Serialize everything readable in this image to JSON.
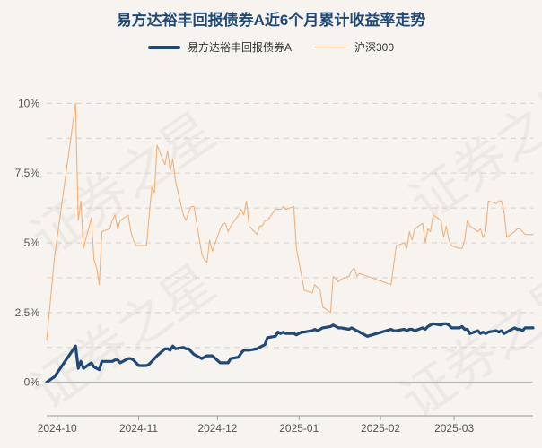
{
  "watermark": "证券之星",
  "chart_data": {
    "type": "line",
    "title": "易方达裕丰回报债券A近6个月累计收益率走势",
    "xlabel": "",
    "ylabel": "",
    "legend_position": "top-center",
    "grid": true,
    "x_ticks": [
      "2024-10",
      "2024-11",
      "2024-12",
      "2025-01",
      "2025-02",
      "2025-03"
    ],
    "x_range": [
      "2024-09-27",
      "2025-03-31"
    ],
    "y_ticks": [
      "0%",
      "2.5%",
      "5%",
      "7.5%",
      "10%"
    ],
    "ylim": [
      -1.2,
      11.2
    ],
    "series": [
      {
        "name": "易方达裕丰回报债券A",
        "color": "#1f4a78",
        "points": [
          [
            "2024-09-27",
            0
          ],
          [
            "2024-09-30",
            0.2
          ],
          [
            "2024-10-08",
            1.3
          ],
          [
            "2024-10-09",
            0.5
          ],
          [
            "2024-10-10",
            0.75
          ],
          [
            "2024-10-11",
            0.5
          ],
          [
            "2024-10-14",
            0.7
          ],
          [
            "2024-10-15",
            0.55
          ],
          [
            "2024-10-16",
            0.5
          ],
          [
            "2024-10-17",
            0.45
          ],
          [
            "2024-10-18",
            0.75
          ],
          [
            "2024-10-21",
            0.75
          ],
          [
            "2024-10-22",
            0.75
          ],
          [
            "2024-10-23",
            0.8
          ],
          [
            "2024-10-24",
            0.8
          ],
          [
            "2024-10-25",
            0.7
          ],
          [
            "2024-10-28",
            0.85
          ],
          [
            "2024-10-29",
            0.85
          ],
          [
            "2024-10-30",
            0.8
          ],
          [
            "2024-10-31",
            0.7
          ],
          [
            "2024-11-01",
            0.6
          ],
          [
            "2024-11-04",
            0.6
          ],
          [
            "2024-11-05",
            0.65
          ],
          [
            "2024-11-06",
            0.75
          ],
          [
            "2024-11-07",
            0.85
          ],
          [
            "2024-11-08",
            0.95
          ],
          [
            "2024-11-11",
            1.2
          ],
          [
            "2024-11-12",
            1.2
          ],
          [
            "2024-11-13",
            1.15
          ],
          [
            "2024-11-14",
            1.3
          ],
          [
            "2024-11-15",
            1.2
          ],
          [
            "2024-11-18",
            1.25
          ],
          [
            "2024-11-19",
            1.2
          ],
          [
            "2024-11-20",
            1.2
          ],
          [
            "2024-11-21",
            1.1
          ],
          [
            "2024-11-22",
            1.0
          ],
          [
            "2024-11-25",
            0.85
          ],
          [
            "2024-11-26",
            0.9
          ],
          [
            "2024-11-27",
            0.95
          ],
          [
            "2024-11-28",
            0.95
          ],
          [
            "2024-11-29",
            0.95
          ],
          [
            "2024-12-02",
            0.7
          ],
          [
            "2024-12-03",
            0.7
          ],
          [
            "2024-12-04",
            0.7
          ],
          [
            "2024-12-05",
            0.7
          ],
          [
            "2024-12-06",
            0.85
          ],
          [
            "2024-12-09",
            0.9
          ],
          [
            "2024-12-10",
            1.05
          ],
          [
            "2024-12-11",
            1.15
          ],
          [
            "2024-12-12",
            1.15
          ],
          [
            "2024-12-13",
            1.15
          ],
          [
            "2024-12-16",
            1.2
          ],
          [
            "2024-12-17",
            1.25
          ],
          [
            "2024-12-18",
            1.3
          ],
          [
            "2024-12-19",
            1.35
          ],
          [
            "2024-12-20",
            1.6
          ],
          [
            "2024-12-23",
            1.65
          ],
          [
            "2024-12-24",
            1.8
          ],
          [
            "2024-12-25",
            1.75
          ],
          [
            "2024-12-26",
            1.8
          ],
          [
            "2024-12-27",
            1.75
          ],
          [
            "2024-12-30",
            1.75
          ],
          [
            "2024-12-31",
            1.7
          ],
          [
            "2025-01-02",
            1.8
          ],
          [
            "2025-01-03",
            1.8
          ],
          [
            "2025-01-06",
            1.85
          ],
          [
            "2025-01-07",
            1.9
          ],
          [
            "2025-01-08",
            1.85
          ],
          [
            "2025-01-09",
            1.9
          ],
          [
            "2025-01-10",
            1.95
          ],
          [
            "2025-01-13",
            2.0
          ],
          [
            "2025-01-14",
            2.05
          ],
          [
            "2025-01-15",
            2.0
          ],
          [
            "2025-01-16",
            1.95
          ],
          [
            "2025-01-17",
            1.95
          ],
          [
            "2025-01-20",
            1.9
          ],
          [
            "2025-01-21",
            1.95
          ],
          [
            "2025-01-22",
            1.9
          ],
          [
            "2025-01-23",
            1.85
          ],
          [
            "2025-01-24",
            1.8
          ],
          [
            "2025-01-27",
            1.65
          ],
          [
            "2025-02-05",
            1.9
          ],
          [
            "2025-02-06",
            1.85
          ],
          [
            "2025-02-07",
            1.85
          ],
          [
            "2025-02-10",
            1.9
          ],
          [
            "2025-02-11",
            1.85
          ],
          [
            "2025-02-12",
            1.9
          ],
          [
            "2025-02-13",
            1.9
          ],
          [
            "2025-02-14",
            1.85
          ],
          [
            "2025-02-17",
            1.95
          ],
          [
            "2025-02-18",
            1.9
          ],
          [
            "2025-02-19",
            2.0
          ],
          [
            "2025-02-20",
            2.05
          ],
          [
            "2025-02-21",
            2.1
          ],
          [
            "2025-02-24",
            2.05
          ],
          [
            "2025-02-25",
            2.1
          ],
          [
            "2025-02-26",
            2.1
          ],
          [
            "2025-02-27",
            2.05
          ],
          [
            "2025-02-28",
            1.95
          ],
          [
            "2025-03-03",
            1.95
          ],
          [
            "2025-03-04",
            2.0
          ],
          [
            "2025-03-05",
            1.9
          ],
          [
            "2025-03-06",
            1.9
          ],
          [
            "2025-03-07",
            1.75
          ],
          [
            "2025-03-10",
            1.85
          ],
          [
            "2025-03-11",
            1.75
          ],
          [
            "2025-03-12",
            1.8
          ],
          [
            "2025-03-13",
            1.75
          ],
          [
            "2025-03-14",
            1.8
          ],
          [
            "2025-03-17",
            1.85
          ],
          [
            "2025-03-18",
            1.8
          ],
          [
            "2025-03-19",
            1.85
          ],
          [
            "2025-03-20",
            1.75
          ],
          [
            "2025-03-21",
            1.8
          ],
          [
            "2025-03-24",
            1.95
          ],
          [
            "2025-03-25",
            1.9
          ],
          [
            "2025-03-26",
            1.9
          ],
          [
            "2025-03-27",
            1.85
          ],
          [
            "2025-03-28",
            1.95
          ],
          [
            "2025-03-31",
            1.95
          ]
        ]
      },
      {
        "name": "沪深300",
        "color": "#f0b27a",
        "points": [
          [
            "2024-09-27",
            1.5
          ],
          [
            "2024-09-30",
            4.5
          ],
          [
            "2024-10-08",
            10.0
          ],
          [
            "2024-10-09",
            5.8
          ],
          [
            "2024-10-10",
            6.5
          ],
          [
            "2024-10-11",
            4.8
          ],
          [
            "2024-10-14",
            5.9
          ],
          [
            "2024-10-15",
            4.4
          ],
          [
            "2024-10-16",
            4.1
          ],
          [
            "2024-10-17",
            3.5
          ],
          [
            "2024-10-18",
            5.4
          ],
          [
            "2024-10-21",
            5.5
          ],
          [
            "2024-10-22",
            5.8
          ],
          [
            "2024-10-23",
            6.0
          ],
          [
            "2024-10-24",
            5.5
          ],
          [
            "2024-10-25",
            5.8
          ],
          [
            "2024-10-28",
            6.0
          ],
          [
            "2024-10-29",
            5.4
          ],
          [
            "2024-10-30",
            5.1
          ],
          [
            "2024-10-31",
            4.9
          ],
          [
            "2024-11-01",
            4.9
          ],
          [
            "2024-11-04",
            4.9
          ],
          [
            "2024-11-05",
            6.0
          ],
          [
            "2024-11-06",
            7.0
          ],
          [
            "2024-11-07",
            6.8
          ],
          [
            "2024-11-08",
            8.5
          ],
          [
            "2024-11-11",
            7.8
          ],
          [
            "2024-11-12",
            8.3
          ],
          [
            "2024-11-13",
            7.6
          ],
          [
            "2024-11-14",
            8.0
          ],
          [
            "2024-11-15",
            7.2
          ],
          [
            "2024-11-18",
            6.0
          ],
          [
            "2024-11-19",
            5.8
          ],
          [
            "2024-11-20",
            6.1
          ],
          [
            "2024-11-21",
            6.3
          ],
          [
            "2024-11-22",
            6.3
          ],
          [
            "2024-11-25",
            4.6
          ],
          [
            "2024-11-26",
            4.4
          ],
          [
            "2024-11-27",
            4.3
          ],
          [
            "2024-11-28",
            5.1
          ],
          [
            "2024-11-29",
            4.7
          ],
          [
            "2024-12-02",
            5.5
          ],
          [
            "2024-12-03",
            5.7
          ],
          [
            "2024-12-04",
            5.7
          ],
          [
            "2024-12-05",
            5.4
          ],
          [
            "2024-12-06",
            5.6
          ],
          [
            "2024-12-09",
            6.0
          ],
          [
            "2024-12-10",
            6.2
          ],
          [
            "2024-12-11",
            6.0
          ],
          [
            "2024-12-12",
            6.5
          ],
          [
            "2024-12-13",
            5.6
          ],
          [
            "2024-12-16",
            5.3
          ],
          [
            "2024-12-17",
            5.6
          ],
          [
            "2024-12-18",
            5.6
          ],
          [
            "2024-12-19",
            5.8
          ],
          [
            "2024-12-20",
            5.8
          ],
          [
            "2024-12-23",
            6.2
          ],
          [
            "2024-12-24",
            6.2
          ],
          [
            "2024-12-25",
            6.2
          ],
          [
            "2024-12-26",
            6.3
          ],
          [
            "2024-12-27",
            6.2
          ],
          [
            "2024-12-30",
            6.3
          ],
          [
            "2024-12-31",
            4.8
          ],
          [
            "2025-01-02",
            3.8
          ],
          [
            "2025-01-03",
            3.3
          ],
          [
            "2025-01-06",
            3.2
          ],
          [
            "2025-01-07",
            3.5
          ],
          [
            "2025-01-08",
            3.4
          ],
          [
            "2025-01-09",
            3.3
          ],
          [
            "2025-01-10",
            2.7
          ],
          [
            "2025-01-13",
            2.5
          ],
          [
            "2025-01-14",
            3.8
          ],
          [
            "2025-01-15",
            3.7
          ],
          [
            "2025-01-16",
            3.6
          ],
          [
            "2025-01-17",
            3.7
          ],
          [
            "2025-01-20",
            3.8
          ],
          [
            "2025-01-21",
            4.0
          ],
          [
            "2025-01-22",
            4.1
          ],
          [
            "2025-01-23",
            3.8
          ],
          [
            "2025-01-24",
            3.9
          ],
          [
            "2025-01-27",
            3.8
          ],
          [
            "2025-02-05",
            3.5
          ],
          [
            "2025-02-06",
            4.2
          ],
          [
            "2025-02-07",
            4.9
          ],
          [
            "2025-02-10",
            5.0
          ],
          [
            "2025-02-11",
            4.8
          ],
          [
            "2025-02-12",
            5.4
          ],
          [
            "2025-02-13",
            5.1
          ],
          [
            "2025-02-14",
            5.5
          ],
          [
            "2025-02-17",
            5.7
          ],
          [
            "2025-02-18",
            5.0
          ],
          [
            "2025-02-19",
            5.5
          ],
          [
            "2025-02-20",
            5.4
          ],
          [
            "2025-02-21",
            6.0
          ],
          [
            "2025-02-24",
            5.8
          ],
          [
            "2025-02-25",
            5.2
          ],
          [
            "2025-02-26",
            5.6
          ],
          [
            "2025-02-27",
            5.1
          ],
          [
            "2025-02-28",
            4.9
          ],
          [
            "2025-03-03",
            4.8
          ],
          [
            "2025-03-04",
            4.8
          ],
          [
            "2025-03-05",
            5.1
          ],
          [
            "2025-03-06",
            5.8
          ],
          [
            "2025-03-07",
            5.6
          ],
          [
            "2025-03-10",
            5.4
          ],
          [
            "2025-03-11",
            5.5
          ],
          [
            "2025-03-12",
            5.2
          ],
          [
            "2025-03-13",
            5.4
          ],
          [
            "2025-03-14",
            6.5
          ],
          [
            "2025-03-17",
            6.4
          ],
          [
            "2025-03-18",
            6.5
          ],
          [
            "2025-03-19",
            6.5
          ],
          [
            "2025-03-20",
            6.1
          ],
          [
            "2025-03-21",
            5.2
          ],
          [
            "2025-03-24",
            5.4
          ],
          [
            "2025-03-25",
            5.5
          ],
          [
            "2025-03-26",
            5.5
          ],
          [
            "2025-03-27",
            5.4
          ],
          [
            "2025-03-28",
            5.3
          ],
          [
            "2025-03-31",
            5.3
          ]
        ]
      }
    ]
  }
}
